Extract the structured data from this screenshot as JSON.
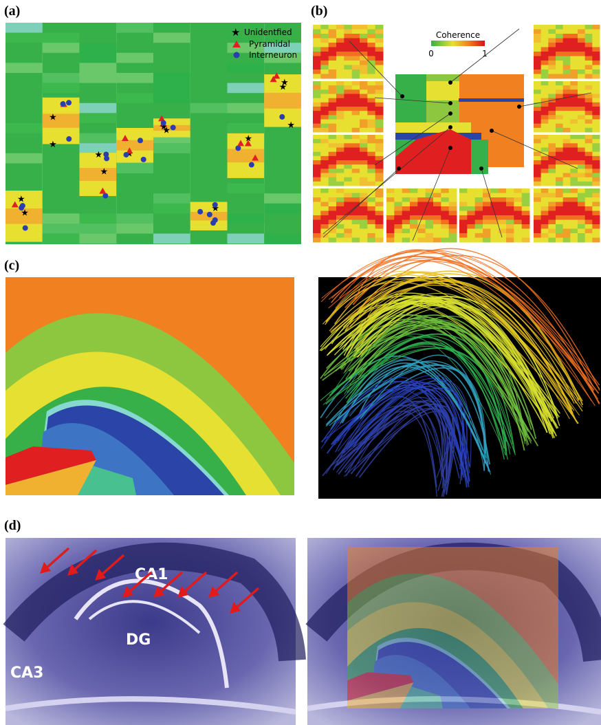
{
  "panels": [
    {
      "label": "(a)",
      "legend": [
        "Unidentfied",
        "Pyramidal",
        "Interneuron"
      ]
    },
    {
      "label": "(b)",
      "colorbar": {
        "title": "Coherence",
        "min_label": "0",
        "max_label": "1"
      }
    },
    {
      "label": "(c)"
    },
    {
      "label": "(d)",
      "annotations": [
        "CA1",
        "DG",
        "CA3"
      ]
    }
  ]
}
